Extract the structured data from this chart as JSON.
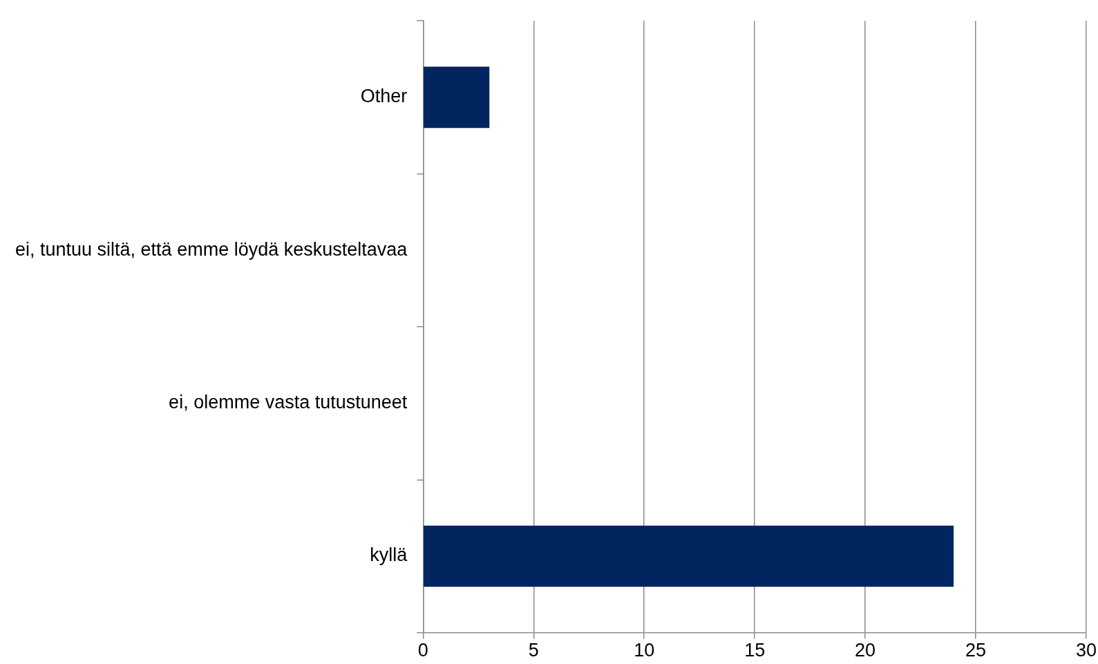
{
  "chart_data": {
    "type": "bar",
    "orientation": "horizontal",
    "categories": [
      "Other",
      "ei, tuntuu siltä, että emme löydä keskusteltavaa",
      "ei, olemme vasta tutustuneet",
      "kyllä"
    ],
    "values": [
      3,
      0,
      0,
      24
    ],
    "color": "#00255f",
    "xlim": [
      0,
      30
    ],
    "xticks": [
      0,
      5,
      10,
      15,
      20,
      25,
      30
    ],
    "grid": "x"
  }
}
